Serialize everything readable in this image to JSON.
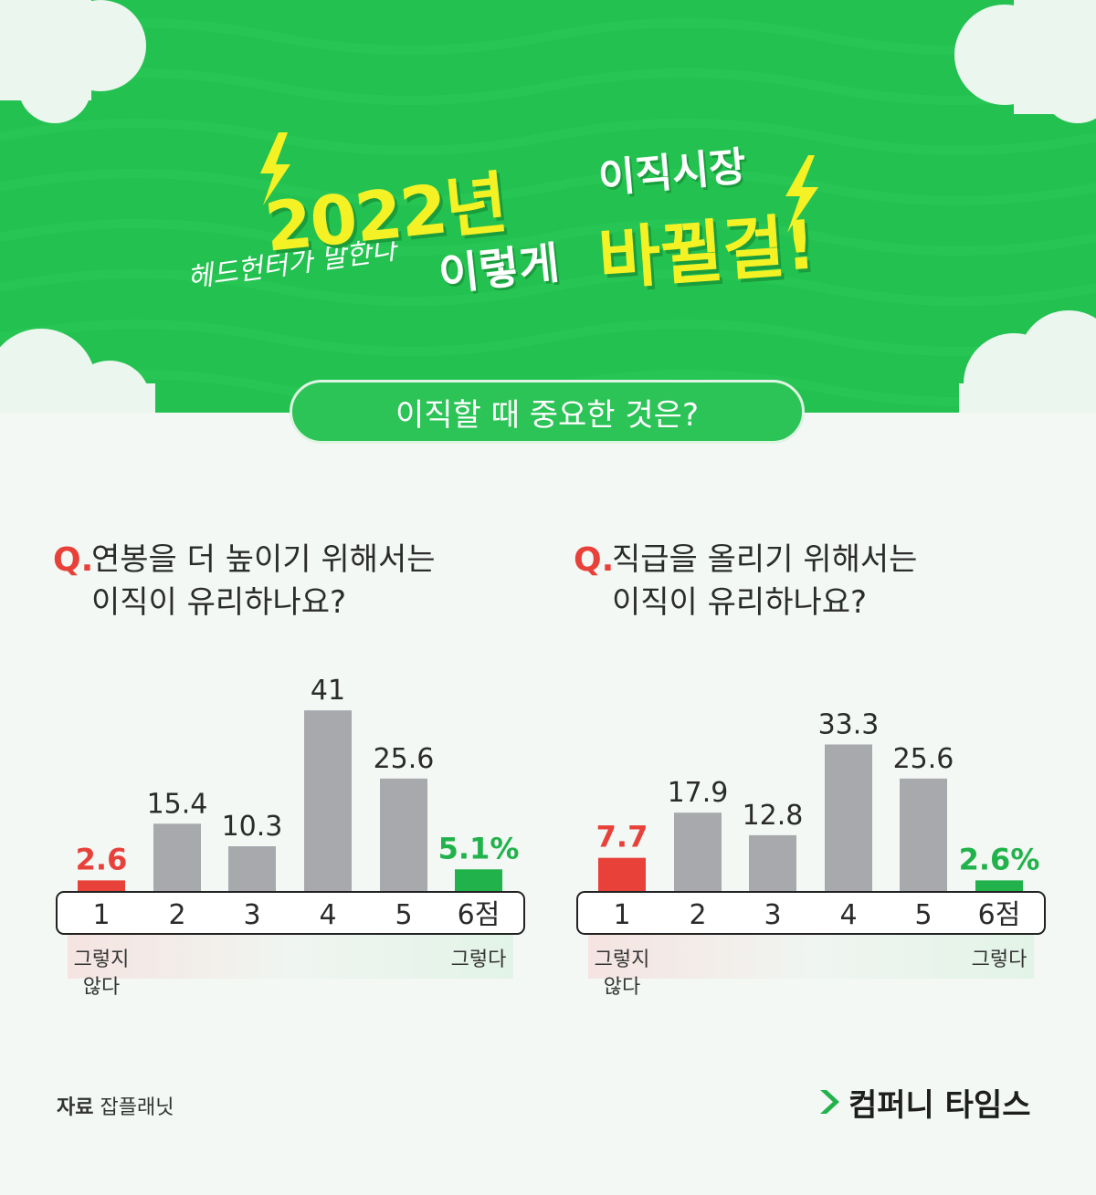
{
  "header": {
    "year_text": "2022년",
    "market_text": "이직시장",
    "thus_text": "이렇게",
    "change_text": "바뀔걸!",
    "subtitle_script": "헤드헌터가 말한다"
  },
  "topic": "이직할 때 중요한 것은?",
  "colors": {
    "banner_green": "#23c150",
    "low_red": "#e8413a",
    "high_green": "#22b24c",
    "bar_gray": "#a7a9ad"
  },
  "chart_data": [
    {
      "type": "bar",
      "q_mark": "Q.",
      "question_line1": "연봉을 더 높이기 위해서는",
      "question_line2": "이직이 유리하나요?",
      "categories": [
        "1",
        "2",
        "3",
        "4",
        "5",
        "6점"
      ],
      "values": [
        2.6,
        15.4,
        10.3,
        41,
        25.6,
        5.1
      ],
      "value_labels": [
        "2.6",
        "15.4",
        "10.3",
        "41",
        "25.6",
        "5.1%"
      ],
      "low_label_line1": "그렇지",
      "low_label_line2": "않다",
      "high_label": "그렇다"
    },
    {
      "type": "bar",
      "q_mark": "Q.",
      "question_line1": "직급을 올리기 위해서는",
      "question_line2": "이직이 유리하나요?",
      "categories": [
        "1",
        "2",
        "3",
        "4",
        "5",
        "6점"
      ],
      "values": [
        7.7,
        17.9,
        12.8,
        33.3,
        25.6,
        2.6
      ],
      "value_labels": [
        "7.7",
        "17.9",
        "12.8",
        "33.3",
        "25.6",
        "2.6%"
      ],
      "low_label_line1": "그렇지",
      "low_label_line2": "않다",
      "high_label": "그렇다"
    }
  ],
  "footer": {
    "source_label": "자료",
    "source_name": "잡플래닛",
    "logo_text": "컴퍼니 타임스"
  }
}
